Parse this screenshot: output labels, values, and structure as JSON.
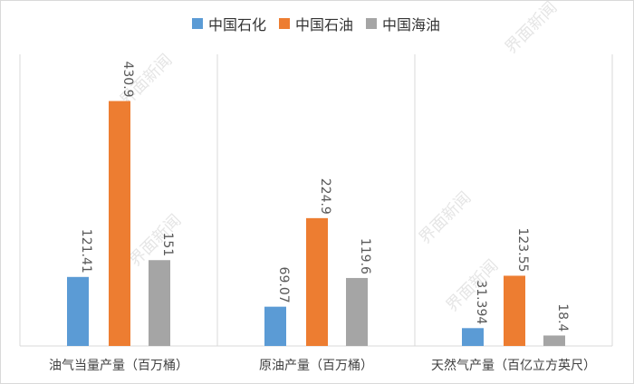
{
  "chart_data": {
    "type": "bar",
    "categories": [
      "油气当量产量（百万桶）",
      "原油产量（百万桶）",
      "天然气产量（百亿立方英尺）"
    ],
    "series": [
      {
        "name": "中国石化",
        "color": "#5b9bd5",
        "values": [
          121.41,
          69.07,
          31.394
        ],
        "labels": [
          "121.41",
          "69.07",
          "31.394"
        ]
      },
      {
        "name": "中国石油",
        "color": "#ed7d31",
        "values": [
          430.9,
          224.9,
          123.55
        ],
        "labels": [
          "430.9",
          "224.9",
          "123.55"
        ]
      },
      {
        "name": "中国海油",
        "color": "#a5a5a5",
        "values": [
          151,
          119.6,
          18.4
        ],
        "labels": [
          "151",
          "119.6",
          "18.4"
        ]
      }
    ],
    "legend_position": "top",
    "grid": false,
    "ylim": [
      0,
      500
    ],
    "title": "",
    "xlabel": "",
    "ylabel": ""
  },
  "watermarks": [
    "界面新闻",
    "界面新闻",
    "界面新闻",
    "界面新闻",
    "界面新闻"
  ]
}
